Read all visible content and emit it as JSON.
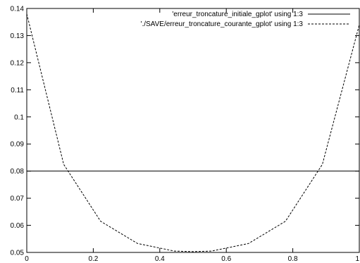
{
  "chart_data": {
    "type": "line",
    "title": "",
    "xlabel": "",
    "ylabel": "",
    "xlim": [
      0,
      1
    ],
    "ylim": [
      0.05,
      0.14
    ],
    "x_ticks": [
      "0",
      "0.2",
      "0.4",
      "0.6",
      "0.8",
      "1"
    ],
    "y_ticks": [
      "0.05",
      "0.06",
      "0.07",
      "0.08",
      "0.09",
      "0.1",
      "0.11",
      "0.12",
      "0.13",
      "0.14"
    ],
    "grid": false,
    "legend_position": "top-right",
    "series": [
      {
        "name": "'erreur_troncature_initiale_gplot' using 1:3",
        "style": "solid",
        "color": "#000000",
        "x": [
          0,
          1
        ],
        "y": [
          0.08,
          0.08
        ]
      },
      {
        "name": "'./SAVE/erreur_troncature_courante_gplot' using 1:3",
        "style": "dashed",
        "color": "#000000",
        "x": [
          0,
          0.111,
          0.222,
          0.333,
          0.444,
          0.5,
          0.556,
          0.667,
          0.778,
          0.889,
          1
        ],
        "y": [
          0.138,
          0.0825,
          0.0615,
          0.0533,
          0.0505,
          0.0503,
          0.0505,
          0.0533,
          0.0615,
          0.0825,
          0.134
        ]
      }
    ]
  }
}
